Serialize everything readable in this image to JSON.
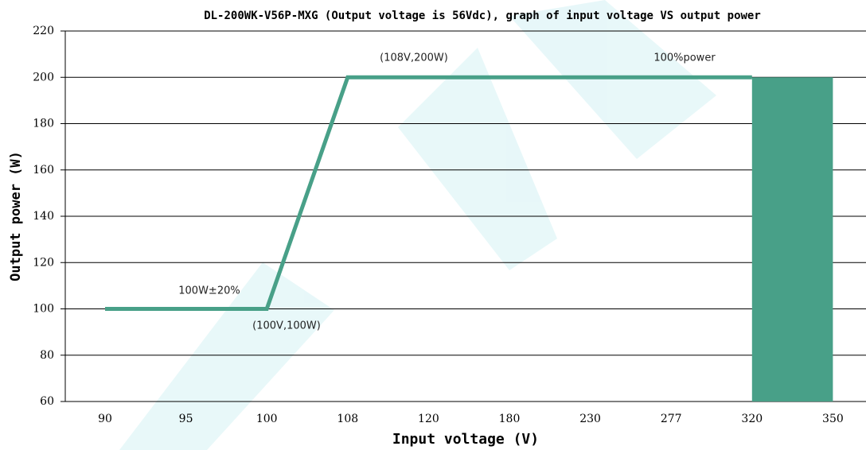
{
  "chart_data": {
    "type": "line",
    "title": "DL-200WK-V56P-MXG (Output voltage is 56Vdc), graph of input voltage VS output power",
    "x_label": "Input voltage (V)",
    "y_label": "Output power (W)",
    "categories": [
      "90",
      "95",
      "100",
      "108",
      "120",
      "180",
      "230",
      "277",
      "320",
      "350"
    ],
    "series": [
      {
        "color": "#48a088",
        "values": [
          100,
          100,
          100,
          200,
          200,
          200,
          200,
          200,
          200,
          null
        ]
      },
      {
        "color": "#48a088",
        "kind": "area",
        "values": [
          null,
          null,
          null,
          null,
          null,
          null,
          null,
          null,
          200,
          200
        ]
      }
    ],
    "ylim": [
      60,
      220
    ],
    "yticks": [
      60,
      80,
      100,
      120,
      140,
      160,
      180,
      200,
      220
    ],
    "grid": true,
    "annotations": [
      "(108V,200W)",
      "100%power",
      "100W±20%",
      "(100V,100W)"
    ]
  }
}
